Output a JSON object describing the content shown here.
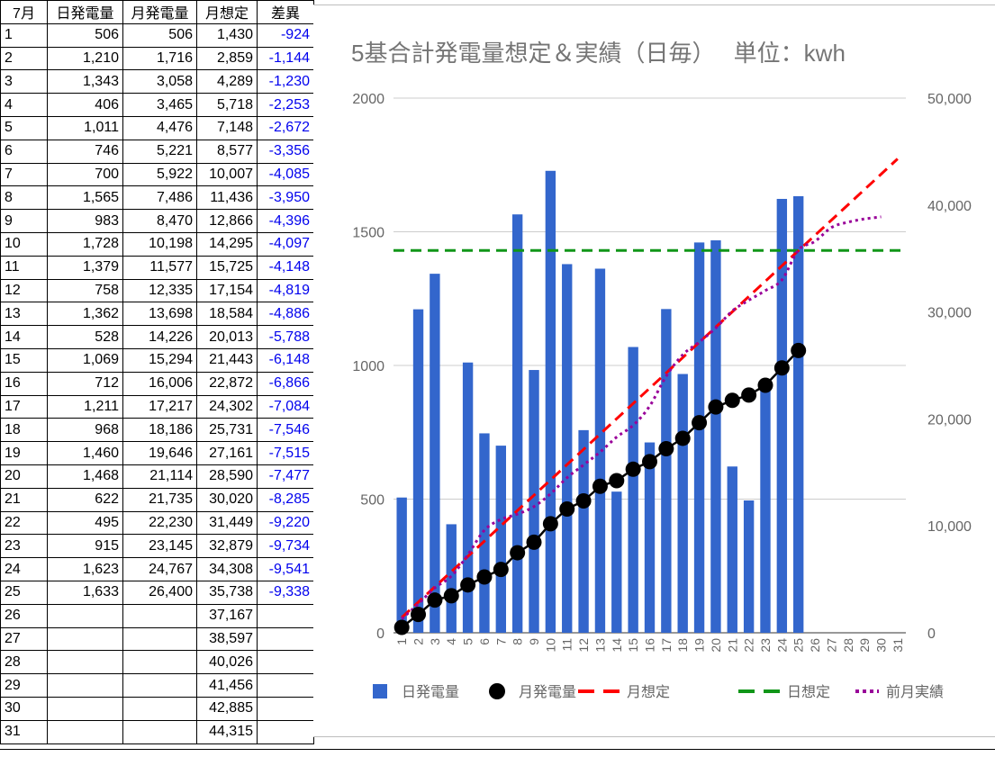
{
  "table": {
    "headers": [
      "7月",
      "日発電量",
      "月発電量",
      "月想定",
      "差異"
    ],
    "rows": [
      [
        "1",
        "506",
        "506",
        "1,430",
        "-924"
      ],
      [
        "2",
        "1,210",
        "1,716",
        "2,859",
        "-1,144"
      ],
      [
        "3",
        "1,343",
        "3,058",
        "4,289",
        "-1,230"
      ],
      [
        "4",
        "406",
        "3,465",
        "5,718",
        "-2,253"
      ],
      [
        "5",
        "1,011",
        "4,476",
        "7,148",
        "-2,672"
      ],
      [
        "6",
        "746",
        "5,221",
        "8,577",
        "-3,356"
      ],
      [
        "7",
        "700",
        "5,922",
        "10,007",
        "-4,085"
      ],
      [
        "8",
        "1,565",
        "7,486",
        "11,436",
        "-3,950"
      ],
      [
        "9",
        "983",
        "8,470",
        "12,866",
        "-4,396"
      ],
      [
        "10",
        "1,728",
        "10,198",
        "14,295",
        "-4,097"
      ],
      [
        "11",
        "1,379",
        "11,577",
        "15,725",
        "-4,148"
      ],
      [
        "12",
        "758",
        "12,335",
        "17,154",
        "-4,819"
      ],
      [
        "13",
        "1,362",
        "13,698",
        "18,584",
        "-4,886"
      ],
      [
        "14",
        "528",
        "14,226",
        "20,013",
        "-5,788"
      ],
      [
        "15",
        "1,069",
        "15,294",
        "21,443",
        "-6,148"
      ],
      [
        "16",
        "712",
        "16,006",
        "22,872",
        "-6,866"
      ],
      [
        "17",
        "1,211",
        "17,217",
        "24,302",
        "-7,084"
      ],
      [
        "18",
        "968",
        "18,186",
        "25,731",
        "-7,546"
      ],
      [
        "19",
        "1,460",
        "19,646",
        "27,161",
        "-7,515"
      ],
      [
        "20",
        "1,468",
        "21,114",
        "28,590",
        "-7,477"
      ],
      [
        "21",
        "622",
        "21,735",
        "30,020",
        "-8,285"
      ],
      [
        "22",
        "495",
        "22,230",
        "31,449",
        "-9,220"
      ],
      [
        "23",
        "915",
        "23,145",
        "32,879",
        "-9,734"
      ],
      [
        "24",
        "1,623",
        "24,767",
        "34,308",
        "-9,541"
      ],
      [
        "25",
        "1,633",
        "26,400",
        "35,738",
        "-9,338"
      ],
      [
        "26",
        "",
        "",
        "37,167",
        ""
      ],
      [
        "27",
        "",
        "",
        "38,597",
        ""
      ],
      [
        "28",
        "",
        "",
        "40,026",
        ""
      ],
      [
        "29",
        "",
        "",
        "41,456",
        ""
      ],
      [
        "30",
        "",
        "",
        "42,885",
        ""
      ],
      [
        "31",
        "",
        "",
        "44,315",
        ""
      ]
    ]
  },
  "chart_data": {
    "type": "bar",
    "title": "5基合計発電量想定＆実績（日毎）　 単位：kwh",
    "categories": [
      "1",
      "2",
      "3",
      "4",
      "5",
      "6",
      "7",
      "8",
      "9",
      "10",
      "11",
      "12",
      "13",
      "14",
      "15",
      "16",
      "17",
      "18",
      "19",
      "20",
      "21",
      "22",
      "23",
      "24",
      "25",
      "26",
      "27",
      "28",
      "29",
      "30",
      "31"
    ],
    "left_axis": {
      "ticks": [
        "0",
        "500",
        "1000",
        "1500",
        "2000"
      ],
      "ylim": [
        0,
        2000
      ]
    },
    "right_axis": {
      "ticks": [
        "0",
        "10,000",
        "20,000",
        "30,000",
        "40,000",
        "50,000"
      ],
      "ylim": [
        0,
        50000
      ]
    },
    "grid": true,
    "legend_position": "bottom",
    "series": [
      {
        "name": "日発電量",
        "type": "bar",
        "axis": "left",
        "color": "#3366cc",
        "values": [
          506,
          1210,
          1343,
          406,
          1011,
          746,
          700,
          1565,
          983,
          1728,
          1379,
          758,
          1362,
          528,
          1069,
          712,
          1211,
          968,
          1460,
          1468,
          622,
          495,
          915,
          1623,
          1633,
          null,
          null,
          null,
          null,
          null,
          null
        ]
      },
      {
        "name": "月発電量",
        "type": "line-markers",
        "axis": "right",
        "color": "#000000",
        "values": [
          506,
          1716,
          3058,
          3465,
          4476,
          5221,
          5922,
          7486,
          8470,
          10198,
          11577,
          12335,
          13698,
          14226,
          15294,
          16006,
          17217,
          18186,
          19646,
          21114,
          21735,
          22230,
          23145,
          24767,
          26400,
          null,
          null,
          null,
          null,
          null,
          null
        ]
      },
      {
        "name": "月想定",
        "type": "dashed-line",
        "axis": "right",
        "color": "#ff0000",
        "values": [
          1430,
          2859,
          4289,
          5718,
          7148,
          8577,
          10007,
          11436,
          12866,
          14295,
          15725,
          17154,
          18584,
          20013,
          21443,
          22872,
          24302,
          25731,
          27161,
          28590,
          30020,
          31449,
          32879,
          34308,
          35738,
          37167,
          38597,
          40026,
          41456,
          42885,
          44315
        ]
      },
      {
        "name": "日想定",
        "type": "dashed-line",
        "axis": "left",
        "color": "#109618",
        "values": [
          1430,
          1430,
          1430,
          1430,
          1430,
          1430,
          1430,
          1430,
          1430,
          1430,
          1430,
          1430,
          1430,
          1430,
          1430,
          1430,
          1430,
          1430,
          1430,
          1430,
          1430,
          1430,
          1430,
          1430,
          1430,
          1430,
          1430,
          1430,
          1430,
          1430,
          1430
        ]
      },
      {
        "name": "前月実績",
        "type": "dotted-line",
        "axis": "right",
        "color": "#990099",
        "values": [
          1300,
          2700,
          4200,
          5300,
          7300,
          9600,
          10600,
          11100,
          11800,
          13000,
          14500,
          15700,
          16900,
          18300,
          19400,
          21200,
          24000,
          26000,
          27200,
          28500,
          30100,
          31100,
          32000,
          33000,
          35800,
          36600,
          37900,
          38400,
          38700,
          38900,
          null
        ]
      }
    ]
  }
}
